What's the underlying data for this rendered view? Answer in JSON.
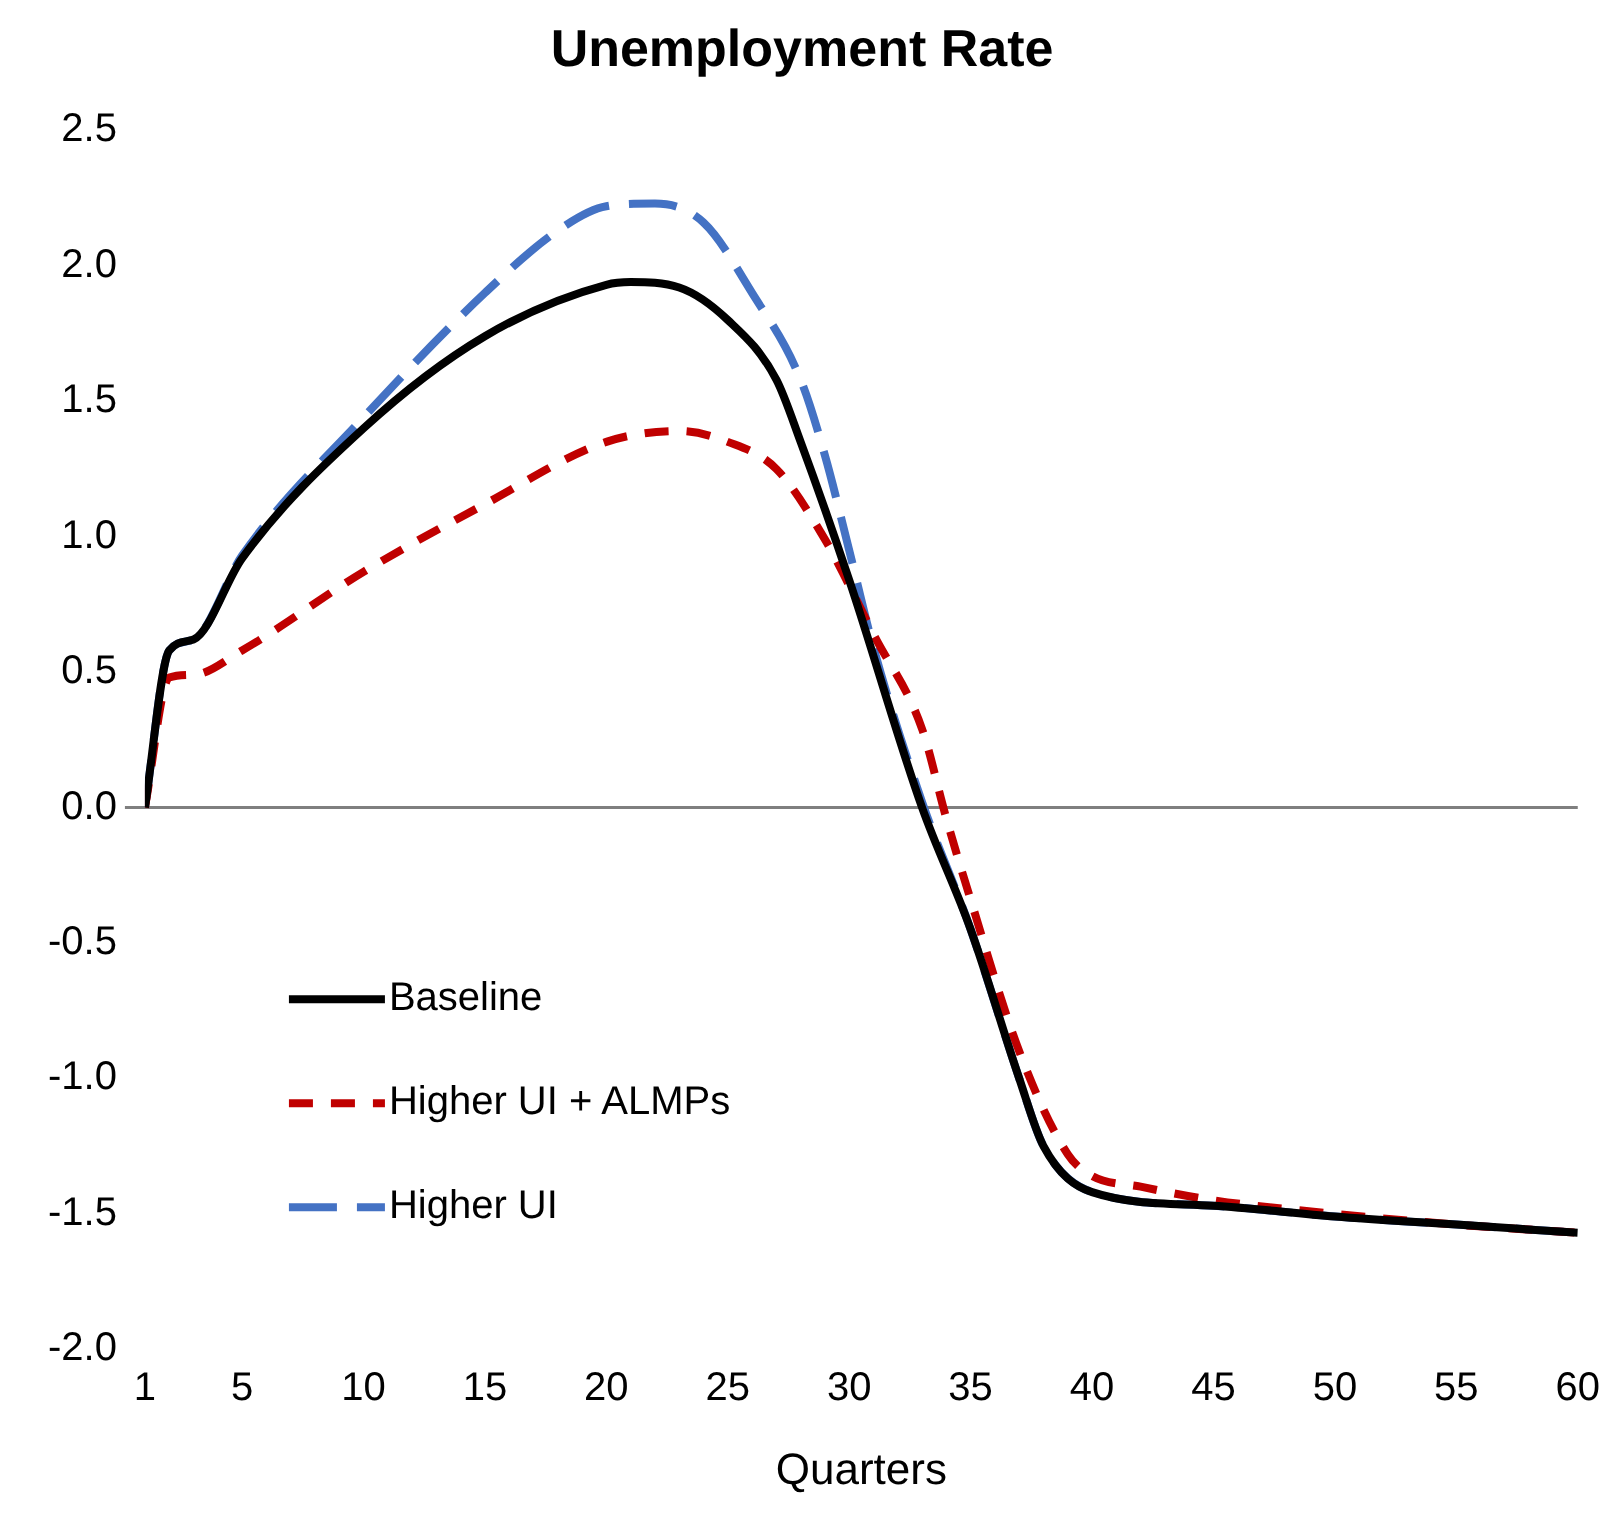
{
  "chart_data": {
    "type": "line",
    "title": "Unemployment Rate",
    "xlabel": "Quarters",
    "xlim": [
      1,
      60
    ],
    "xticks": [
      1,
      5,
      10,
      15,
      20,
      25,
      30,
      35,
      40,
      45,
      50,
      55,
      60
    ],
    "ylim": [
      -2,
      2.5
    ],
    "yticks": [
      {
        "value": -2,
        "label": "-2.0"
      },
      -1.5,
      {
        "value": -1,
        "label": "-1.0"
      },
      -0.5,
      {
        "value": 0,
        "label": "0.0"
      },
      0.5,
      {
        "value": 1,
        "label": "1.0"
      },
      1.5,
      {
        "value": 2,
        "label": "2.0"
      },
      2.5
    ],
    "grid": false,
    "legend": "bottom left",
    "marker": "none",
    "ref_lines": [
      {
        "axis": "y",
        "value": 0,
        "color": "#7f7f7f"
      }
    ],
    "series": [
      {
        "name": "Baseline",
        "color": "#000000",
        "line_style": "solid",
        "x": [
          1,
          2,
          3,
          5,
          10,
          15,
          20,
          21,
          23,
          25,
          27,
          28,
          30,
          33,
          35,
          37,
          38,
          40,
          45,
          50,
          55,
          60
        ],
        "values": [
          0,
          0.58,
          0.62,
          0.92,
          1.4,
          1.74,
          1.93,
          1.94,
          1.92,
          1.8,
          1.58,
          1.35,
          0.84,
          0,
          -0.45,
          -1,
          -1.25,
          -1.42,
          -1.47,
          -1.51,
          -1.54,
          -1.57
        ]
      },
      {
        "name": "Higher UI + ALMPs",
        "color": "#c00000",
        "line_style": "dashed",
        "x": [
          1,
          2,
          3,
          5,
          10,
          15,
          20,
          23,
          25,
          27,
          29,
          30,
          31,
          33,
          34,
          35,
          37,
          39,
          40,
          42,
          45,
          50,
          55,
          60
        ],
        "values": [
          0,
          0.48,
          0.49,
          0.58,
          0.87,
          1.12,
          1.35,
          1.39,
          1.35,
          1.25,
          0.99,
          0.82,
          0.64,
          0.29,
          -0.04,
          -0.34,
          -0.9,
          -1.28,
          -1.36,
          -1.4,
          -1.45,
          -1.5,
          -1.54,
          -1.57
        ]
      },
      {
        "name": "Higher UI",
        "color": "#4472c4",
        "line_style": "dashed",
        "x": [
          1,
          2,
          3,
          5,
          10,
          15,
          18,
          20,
          22,
          24,
          26,
          28,
          29,
          30,
          31,
          33,
          35,
          37,
          38,
          40,
          45,
          50,
          55,
          60
        ],
        "values": [
          0,
          0.58,
          0.62,
          0.93,
          1.44,
          1.9,
          2.13,
          2.22,
          2.23,
          2.16,
          1.9,
          1.58,
          1.3,
          0.95,
          0.59,
          0.02,
          -0.45,
          -1,
          -1.25,
          -1.42,
          -1.47,
          -1.51,
          -1.54,
          -1.57
        ]
      }
    ]
  }
}
